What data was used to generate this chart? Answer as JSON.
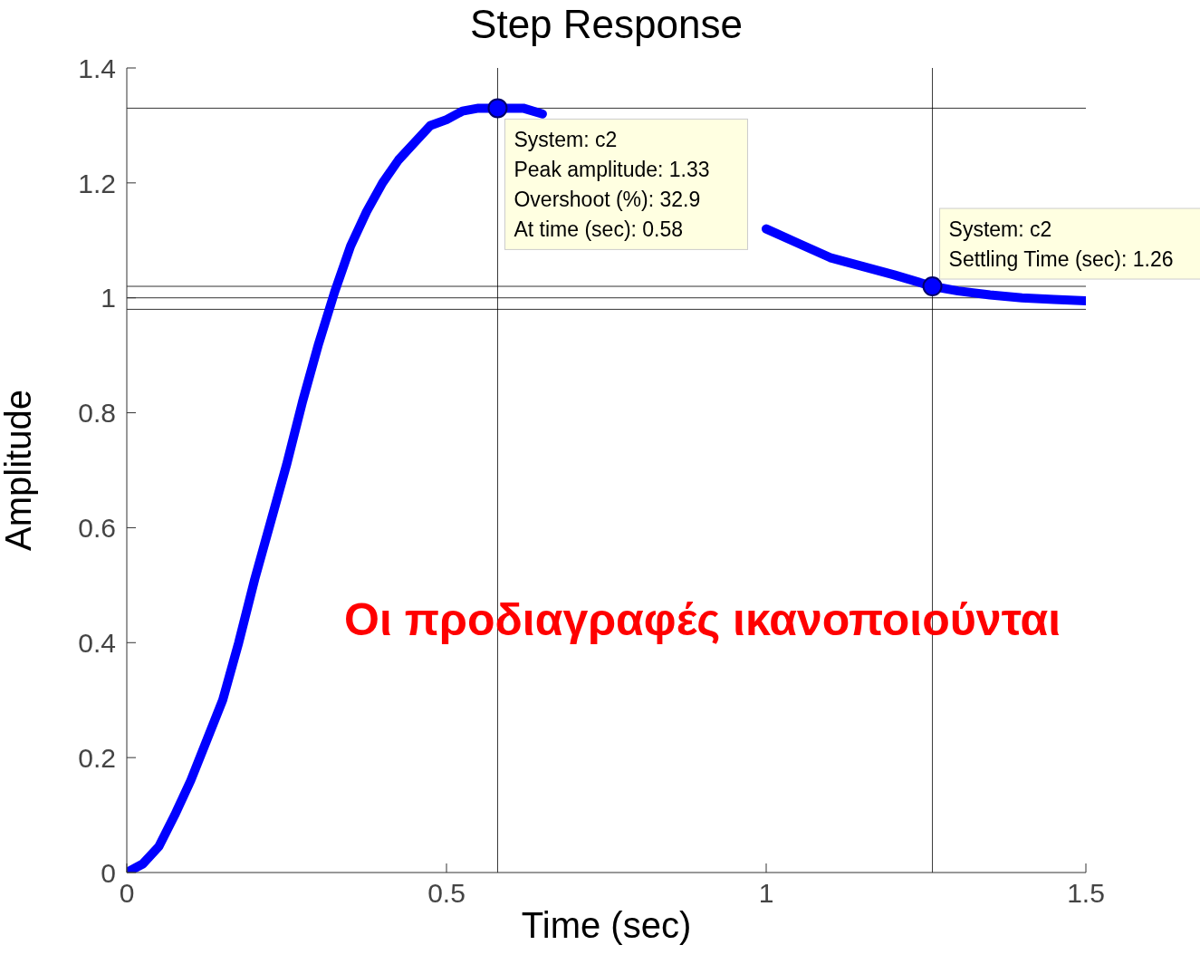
{
  "chart_data": {
    "type": "line",
    "title": "Step Response",
    "xlabel": "Time (sec)",
    "ylabel": "Amplitude",
    "xlim": [
      0,
      1.5
    ],
    "xticks": [
      0,
      0.5,
      1,
      1.5
    ],
    "ylim": [
      0,
      1.4
    ],
    "yticks": [
      0,
      0.2,
      0.4,
      0.6,
      0.8,
      1,
      1.2,
      1.4
    ],
    "grid": false,
    "series": [
      {
        "color": "#0000ff",
        "marker": "none",
        "x": [
          0,
          0.025,
          0.05,
          0.075,
          0.1,
          0.125,
          0.15,
          0.175,
          0.2,
          0.225,
          0.25,
          0.275,
          0.3,
          0.325,
          0.35,
          0.375,
          0.4,
          0.425,
          0.45,
          0.475,
          0.5,
          0.525,
          0.55,
          0.58,
          0.62,
          0.65,
          0.7,
          0.75,
          0.8,
          0.85,
          0.9,
          0.95,
          1.0,
          1.05,
          1.1,
          1.15,
          1.2,
          1.26,
          1.3,
          1.35,
          1.4,
          1.45,
          1.5
        ],
        "values": [
          0,
          0.015,
          0.045,
          0.1,
          0.16,
          0.23,
          0.3,
          0.4,
          0.51,
          0.61,
          0.71,
          0.82,
          0.92,
          1.01,
          1.09,
          1.15,
          1.2,
          1.24,
          1.27,
          1.3,
          1.31,
          1.325,
          1.33,
          1.33,
          1.33,
          1.32,
          null,
          null,
          null,
          null,
          null,
          null,
          1.12,
          1.095,
          1.07,
          1.055,
          1.04,
          1.02,
          1.012,
          1.005,
          1.0,
          0.997,
          0.995
        ]
      },
      {
        "type": "scatter",
        "color": "#0000ff",
        "marker": "circle",
        "x": [
          0.58,
          1.26
        ],
        "values": [
          1.33,
          1.02
        ]
      }
    ],
    "ref_lines": [
      {
        "axis": "y",
        "value": 1.33,
        "color": "#000000"
      },
      {
        "axis": "y",
        "value": 1.02,
        "color": "#000000"
      },
      {
        "axis": "y",
        "value": 1,
        "color": "#000000"
      },
      {
        "axis": "y",
        "value": 0.98,
        "color": "#000000"
      },
      {
        "axis": "x",
        "value": 0.58,
        "color": "#000000"
      },
      {
        "axis": "x",
        "value": 1.26,
        "color": "#000000"
      }
    ],
    "annotations": [
      {
        "text": "System: c2\nPeak amplitude: 1.33\nOvershoot (%): 32.9\nAt time (sec): 0.58",
        "x": 0.58,
        "y": 1.33
      },
      {
        "text": "System: c2\nSettling Time (sec): 1.26",
        "x": 1.26,
        "y": 1.02
      },
      "Οι προδιαγραφές ικανοποιούνται"
    ]
  }
}
